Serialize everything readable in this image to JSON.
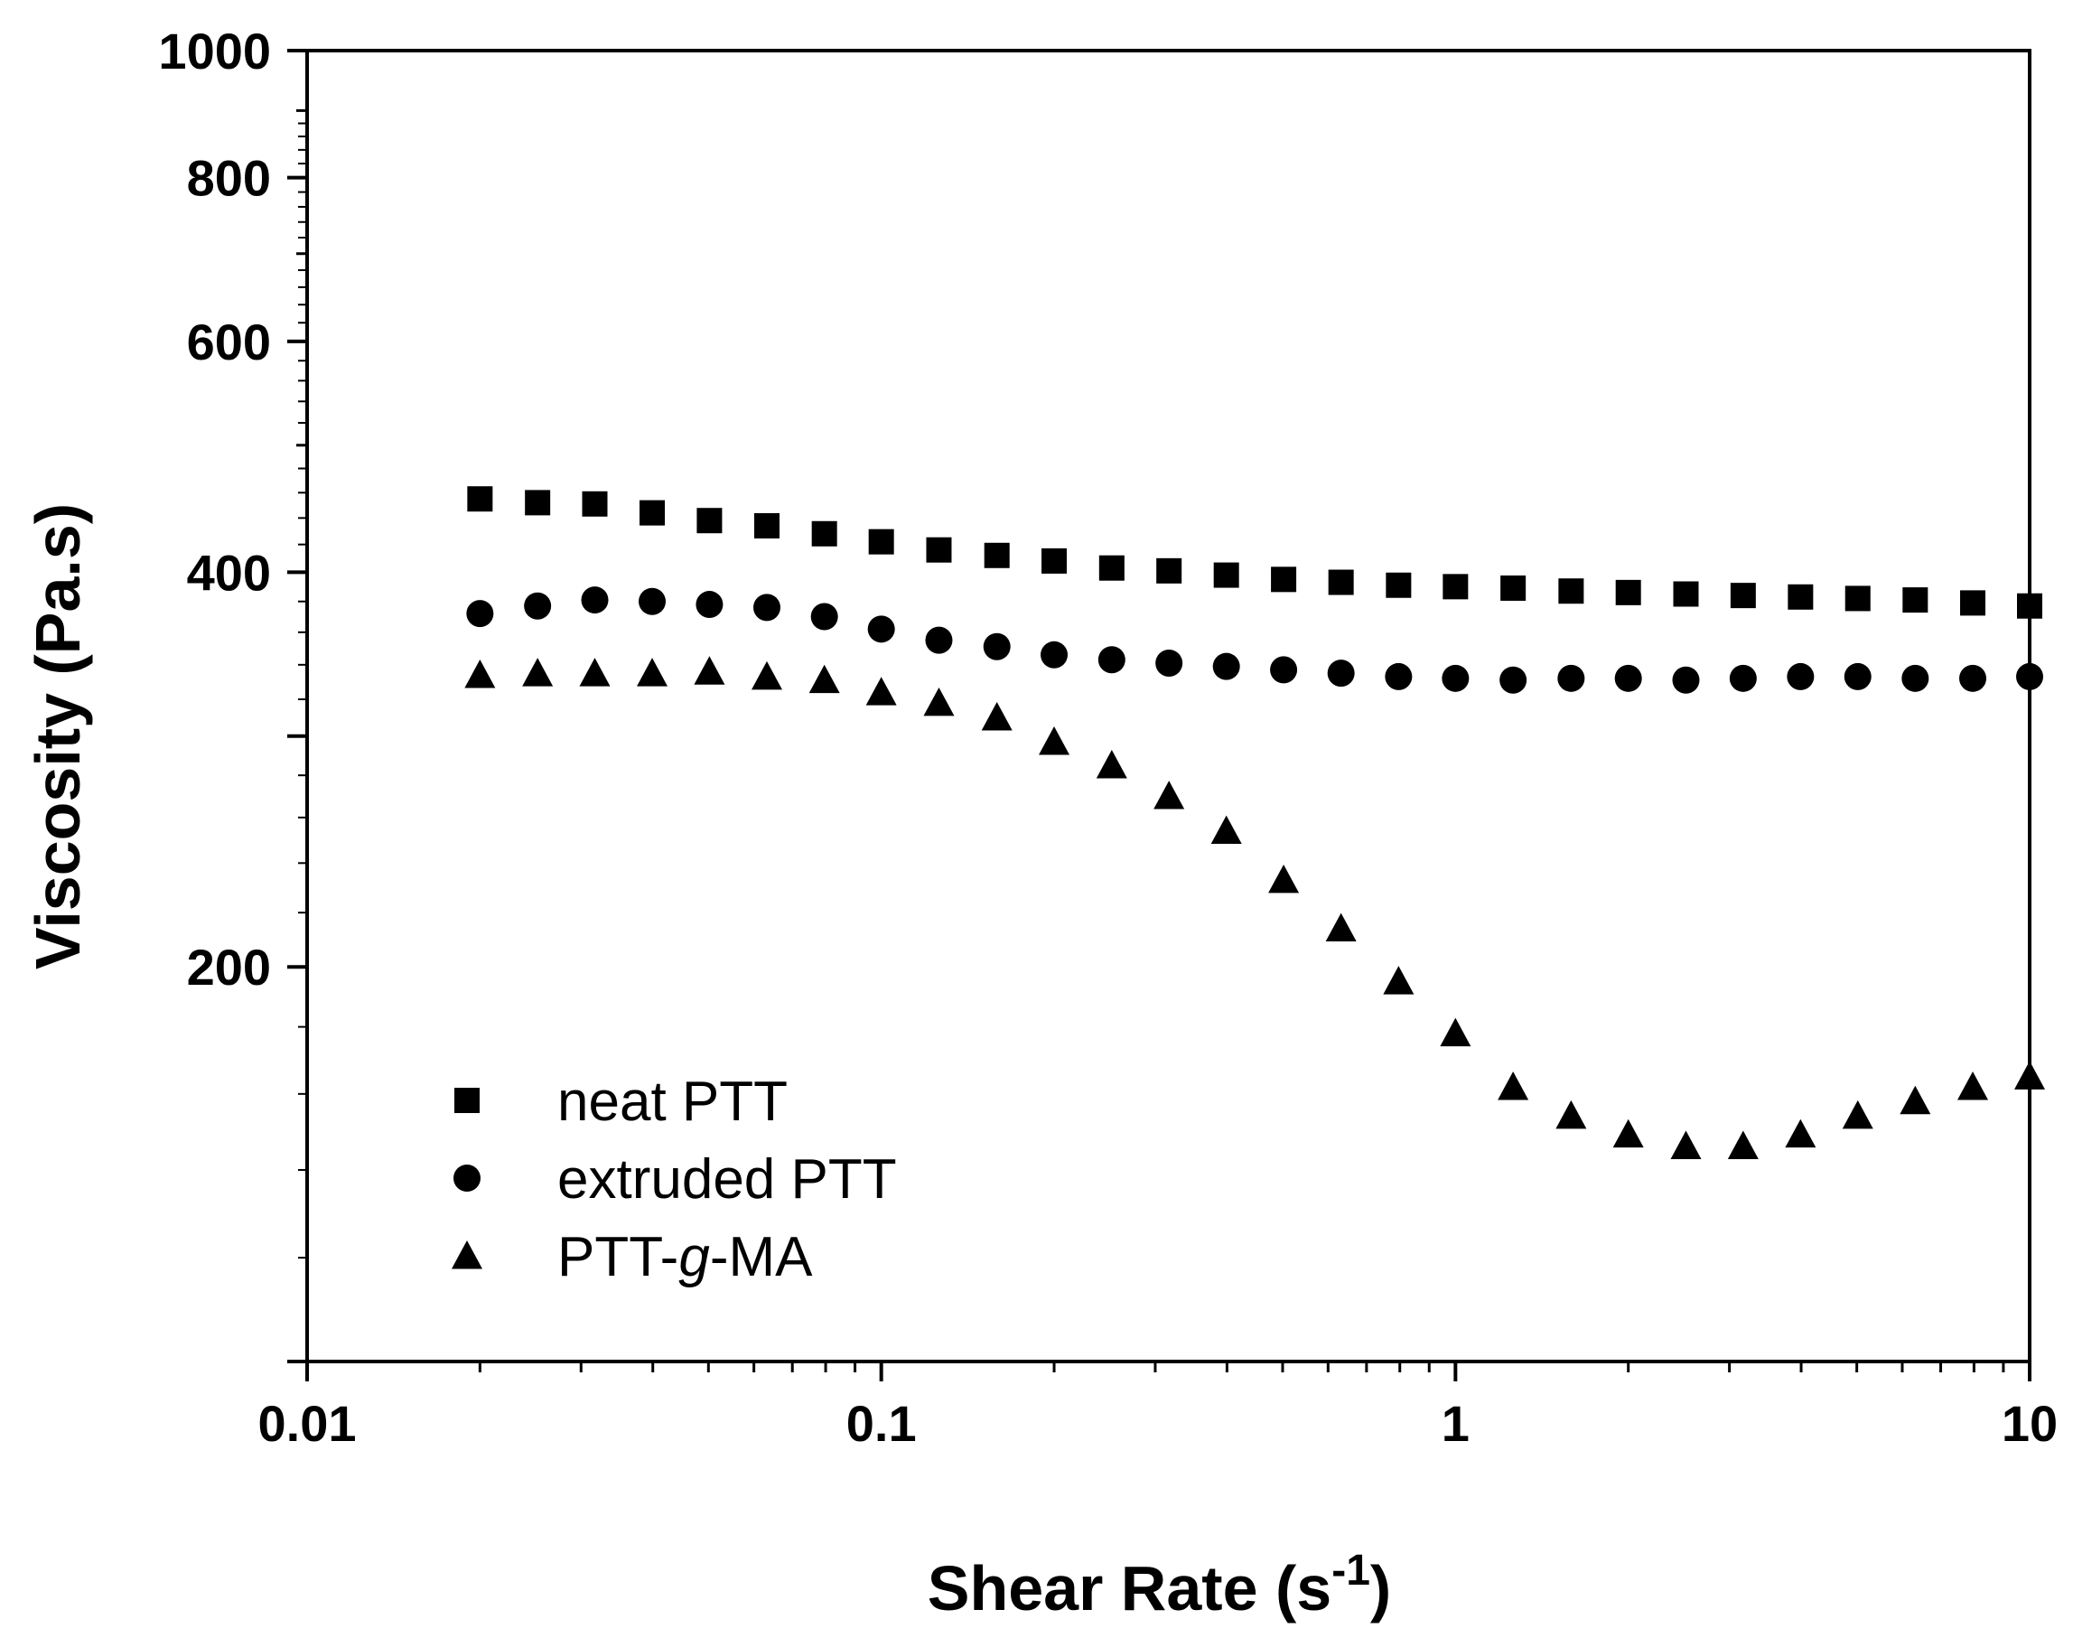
{
  "chart_data": {
    "type": "scatter",
    "x_scale": "log",
    "y_scale": "log",
    "xlim": [
      0.01,
      10
    ],
    "ylim": [
      100,
      1000
    ],
    "x_ticks": [
      {
        "value": 0.01,
        "label": "0.01"
      },
      {
        "value": 0.1,
        "label": "0.1"
      },
      {
        "value": 1,
        "label": "1"
      },
      {
        "value": 10,
        "label": "10"
      }
    ],
    "y_ticks": [
      {
        "value": 200,
        "label": "200"
      },
      {
        "value": 400,
        "label": "400"
      },
      {
        "value": 600,
        "label": "600"
      },
      {
        "value": 800,
        "label": "800"
      },
      {
        "value": 1000,
        "label": "1000"
      }
    ],
    "xlabel": {
      "main": "Shear Rate (s",
      "sup": "-1",
      "close": ")"
    },
    "ylabel": "Viscosity (Pa.s)",
    "legend_position": "bottom-left",
    "x": [
      0.02,
      0.0252,
      0.0317,
      0.0399,
      0.0502,
      0.0632,
      0.0796,
      0.1,
      0.126,
      0.159,
      0.2,
      0.252,
      0.317,
      0.399,
      0.502,
      0.632,
      0.796,
      1.0,
      1.26,
      1.59,
      2.0,
      2.52,
      3.17,
      3.99,
      5.02,
      6.32,
      7.96,
      10.0
    ],
    "series": [
      {
        "name": "neat PTT",
        "marker": "square",
        "legend_label": {
          "pre": "neat PTT",
          "ital": "",
          "post": ""
        },
        "values": [
          455,
          452,
          451,
          444,
          438,
          434,
          428,
          422,
          416,
          412,
          408,
          403,
          401,
          398,
          395,
          393,
          391,
          390,
          389,
          387,
          386,
          385,
          384,
          383,
          382,
          381,
          379,
          377
        ]
      },
      {
        "name": "extruded PTT",
        "marker": "circle",
        "legend_label": {
          "pre": "extruded PTT",
          "ital": "",
          "post": ""
        },
        "values": [
          372,
          377,
          381,
          380,
          378,
          376,
          370,
          362,
          355,
          351,
          346,
          343,
          341,
          339,
          337,
          335,
          333,
          332,
          331,
          332,
          332,
          331,
          332,
          333,
          333,
          332,
          332,
          333
        ]
      },
      {
        "name": "PTT-g-MA",
        "marker": "triangle",
        "legend_label": {
          "pre": "PTT-",
          "ital": "g",
          "post": "-MA"
        },
        "values": [
          334,
          335,
          335,
          335,
          336,
          333,
          331,
          324,
          318,
          310,
          297,
          285,
          270,
          254,
          233,
          214,
          195,
          178,
          162,
          154,
          149,
          146,
          146,
          149,
          154,
          158,
          162,
          165
        ]
      }
    ]
  }
}
